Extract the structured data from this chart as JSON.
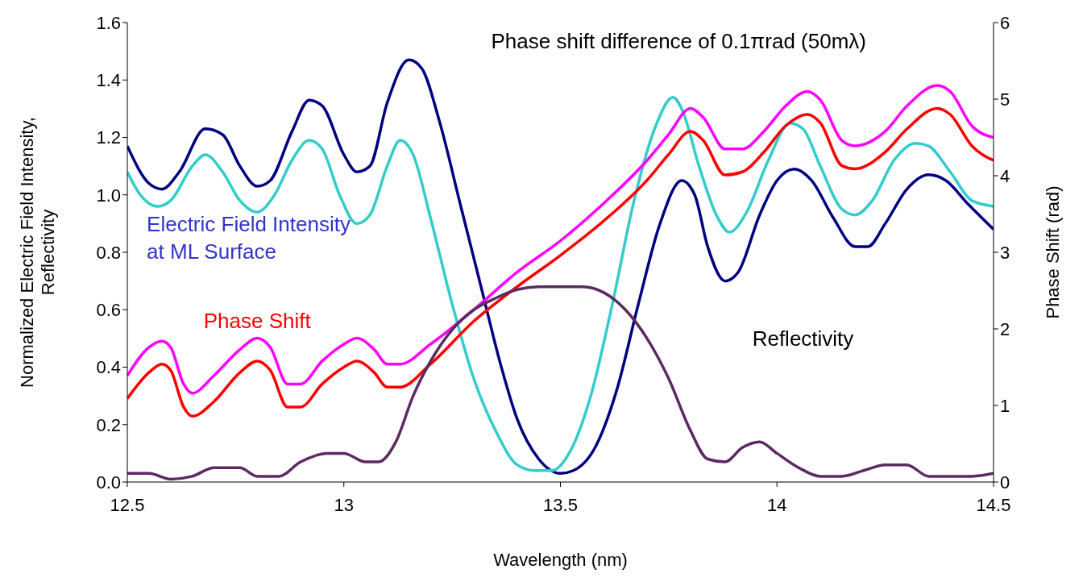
{
  "chart_data": {
    "type": "line",
    "title": "Phase shift difference of 0.1πrad (50mλ)",
    "xlabel": "Wavelength (nm)",
    "ylabel": "Normalized Electric Field Intensity,\nReflectivity",
    "y2label": "Phase Shift (rad)",
    "xlim": [
      12.5,
      14.5
    ],
    "xticks": [
      12.5,
      13,
      13.5,
      14,
      14.5
    ],
    "ylim": [
      0,
      1.6
    ],
    "yticks": [
      {
        "value": 0,
        "label": "0.0"
      },
      {
        "value": 0.2,
        "label": "0.2"
      },
      {
        "value": 0.4,
        "label": "0.4"
      },
      {
        "value": 0.6,
        "label": "0.6"
      },
      {
        "value": 0.8,
        "label": "0.8"
      },
      {
        "value": 1,
        "label": "1.0"
      },
      {
        "value": 1.2,
        "label": "1.2"
      },
      {
        "value": 1.4,
        "label": "1.4"
      },
      {
        "value": 1.6,
        "label": "1.6"
      }
    ],
    "y2lim": [
      0,
      6
    ],
    "y2ticks": [
      0,
      1,
      2,
      3,
      4,
      5,
      6
    ],
    "marker": "none",
    "line_style": "solid",
    "annotations": [
      "Electric Field Intensity\nat ML Surface",
      "Phase Shift",
      "Reflectivity"
    ],
    "series": [
      {
        "color": "#000080",
        "x": [
          12.5,
          12.55,
          12.58,
          12.62,
          12.68,
          12.72,
          12.76,
          12.8,
          12.83,
          12.88,
          12.92,
          12.95,
          13.0,
          13.03,
          13.06,
          13.1,
          13.15,
          13.18,
          13.22,
          13.27,
          13.32,
          13.36,
          13.4,
          13.45,
          13.5,
          13.53,
          13.58,
          13.63,
          13.68,
          13.73,
          13.78,
          13.81,
          13.84,
          13.88,
          13.91,
          13.96,
          14.0,
          14.04,
          14.08,
          14.13,
          14.18,
          14.21,
          14.25,
          14.3,
          14.35,
          14.39,
          14.44,
          14.5
        ],
        "values": [
          1.17,
          1.04,
          1.02,
          1.08,
          1.23,
          1.21,
          1.1,
          1.03,
          1.05,
          1.22,
          1.33,
          1.31,
          1.14,
          1.08,
          1.1,
          1.32,
          1.47,
          1.44,
          1.26,
          0.96,
          0.66,
          0.42,
          0.22,
          0.08,
          0.03,
          0.04,
          0.12,
          0.32,
          0.62,
          0.9,
          1.05,
          1.0,
          0.82,
          0.7,
          0.73,
          0.93,
          1.05,
          1.09,
          1.05,
          0.92,
          0.82,
          0.82,
          0.9,
          1.02,
          1.07,
          1.05,
          0.97,
          0.88
        ]
      },
      {
        "color": "#33cccc",
        "x": [
          12.5,
          12.53,
          12.57,
          12.6,
          12.65,
          12.68,
          12.72,
          12.76,
          12.8,
          12.84,
          12.88,
          12.92,
          12.95,
          12.99,
          13.03,
          13.06,
          13.1,
          13.13,
          13.16,
          13.2,
          13.25,
          13.3,
          13.35,
          13.4,
          13.44,
          13.48,
          13.52,
          13.57,
          13.62,
          13.67,
          13.72,
          13.76,
          13.78,
          13.82,
          13.86,
          13.89,
          13.93,
          13.98,
          14.03,
          14.06,
          14.1,
          14.15,
          14.18,
          14.22,
          14.27,
          14.32,
          14.35,
          14.4,
          14.45,
          14.5
        ],
        "values": [
          1.08,
          1.0,
          0.96,
          0.98,
          1.1,
          1.14,
          1.08,
          0.98,
          0.94,
          1.0,
          1.12,
          1.19,
          1.16,
          1.0,
          0.9,
          0.93,
          1.1,
          1.19,
          1.14,
          0.92,
          0.62,
          0.36,
          0.18,
          0.06,
          0.04,
          0.04,
          0.1,
          0.3,
          0.62,
          0.98,
          1.24,
          1.34,
          1.3,
          1.1,
          0.93,
          0.87,
          0.94,
          1.12,
          1.25,
          1.23,
          1.1,
          0.95,
          0.93,
          0.98,
          1.12,
          1.18,
          1.17,
          1.08,
          0.98,
          0.96
        ]
      },
      {
        "color": "#ff00ff",
        "axis": "y2",
        "x": [
          12.5,
          12.55,
          12.58,
          12.6,
          12.63,
          12.65,
          12.7,
          12.76,
          12.8,
          12.83,
          12.87,
          12.9,
          12.95,
          13.0,
          13.03,
          13.07,
          13.1,
          13.13,
          13.2,
          13.3,
          13.4,
          13.5,
          13.6,
          13.7,
          13.75,
          13.8,
          13.83,
          13.88,
          13.92,
          13.97,
          14.02,
          14.07,
          14.1,
          14.15,
          14.18,
          14.25,
          14.3,
          14.37,
          14.4,
          14.45,
          14.5
        ],
        "values": [
          1.39,
          1.76,
          1.84,
          1.76,
          1.28,
          1.16,
          1.39,
          1.73,
          1.88,
          1.76,
          1.28,
          1.28,
          1.58,
          1.8,
          1.88,
          1.73,
          1.54,
          1.54,
          1.8,
          2.25,
          2.74,
          3.15,
          3.64,
          4.2,
          4.54,
          4.88,
          4.76,
          4.35,
          4.35,
          4.58,
          4.91,
          5.1,
          4.99,
          4.46,
          4.39,
          4.58,
          4.91,
          5.18,
          5.1,
          4.65,
          4.5
        ]
      },
      {
        "color": "#ff0000",
        "axis": "y2",
        "x": [
          12.5,
          12.55,
          12.58,
          12.6,
          12.63,
          12.65,
          12.7,
          12.76,
          12.8,
          12.83,
          12.87,
          12.9,
          12.95,
          13.0,
          13.03,
          13.07,
          13.1,
          13.13,
          13.2,
          13.3,
          13.4,
          13.5,
          13.6,
          13.7,
          13.75,
          13.8,
          13.83,
          13.88,
          13.92,
          13.97,
          14.02,
          14.07,
          14.1,
          14.15,
          14.18,
          14.25,
          14.3,
          14.37,
          14.4,
          14.45,
          14.5
        ],
        "values": [
          1.09,
          1.43,
          1.54,
          1.46,
          0.98,
          0.86,
          1.05,
          1.43,
          1.58,
          1.46,
          0.98,
          0.98,
          1.28,
          1.5,
          1.58,
          1.43,
          1.24,
          1.24,
          1.54,
          2.1,
          2.55,
          2.96,
          3.41,
          3.94,
          4.28,
          4.58,
          4.46,
          4.01,
          4.05,
          4.31,
          4.65,
          4.8,
          4.69,
          4.13,
          4.09,
          4.31,
          4.61,
          4.88,
          4.8,
          4.39,
          4.2
        ]
      },
      {
        "color": "#5a2a60",
        "x": [
          12.5,
          12.55,
          12.6,
          12.65,
          12.7,
          12.76,
          12.8,
          12.85,
          12.9,
          12.96,
          13.0,
          13.05,
          13.08,
          13.12,
          13.16,
          13.2,
          13.25,
          13.3,
          13.35,
          13.4,
          13.45,
          13.5,
          13.55,
          13.6,
          13.65,
          13.7,
          13.75,
          13.8,
          13.84,
          13.88,
          13.92,
          13.96,
          14.0,
          14.05,
          14.1,
          14.15,
          14.2,
          14.25,
          14.3,
          14.35,
          14.4,
          14.45,
          14.5
        ],
        "values": [
          0.03,
          0.03,
          0.01,
          0.02,
          0.05,
          0.05,
          0.02,
          0.02,
          0.07,
          0.1,
          0.1,
          0.07,
          0.07,
          0.14,
          0.3,
          0.42,
          0.53,
          0.6,
          0.64,
          0.67,
          0.68,
          0.68,
          0.68,
          0.66,
          0.6,
          0.5,
          0.36,
          0.18,
          0.08,
          0.07,
          0.12,
          0.14,
          0.1,
          0.05,
          0.02,
          0.02,
          0.04,
          0.06,
          0.06,
          0.02,
          0.02,
          0.02,
          0.03
        ]
      }
    ]
  }
}
